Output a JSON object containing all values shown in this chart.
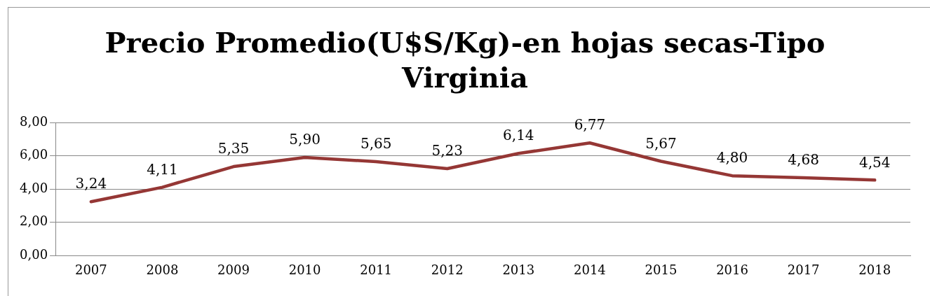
{
  "chart_data": {
    "type": "line",
    "title": "Precio Promedio(U$S/Kg)-en hojas secas-Tipo Virginia",
    "categories": [
      "2007",
      "2008",
      "2009",
      "2010",
      "2011",
      "2012",
      "2013",
      "2014",
      "2015",
      "2016",
      "2017",
      "2018"
    ],
    "series": [
      {
        "color": "#953735",
        "values": [
          3.24,
          4.11,
          5.35,
          5.9,
          5.65,
          5.23,
          6.14,
          6.77,
          5.67,
          4.8,
          4.68,
          4.54
        ],
        "value_labels": [
          "3,24",
          "4,11",
          "5,35",
          "5,90",
          "5,65",
          "5,23",
          "6,14",
          "6,77",
          "5,67",
          "4,80",
          "4,68",
          "4,54"
        ]
      }
    ],
    "ylim": [
      0,
      8
    ],
    "yticks": [
      {
        "value": 0,
        "label": "0,00"
      },
      {
        "value": 2,
        "label": "2,00"
      },
      {
        "value": 4,
        "label": "4,00"
      },
      {
        "value": 6,
        "label": "6,00"
      },
      {
        "value": 8,
        "label": "8,00"
      }
    ],
    "grid": "y",
    "legend": false,
    "marker": "none",
    "line_style": "solid"
  }
}
